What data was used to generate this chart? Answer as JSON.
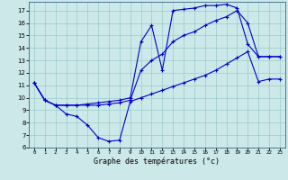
{
  "xlabel": "Graphe des températures (°c)",
  "bg_color": "#cce8e8",
  "grid_color": "#99cccc",
  "line_color": "#0000cc",
  "xlim": [
    -0.5,
    23.5
  ],
  "ylim": [
    6,
    17.7
  ],
  "xticks": [
    0,
    1,
    2,
    3,
    4,
    5,
    6,
    7,
    8,
    9,
    10,
    11,
    12,
    13,
    14,
    15,
    16,
    17,
    18,
    19,
    20,
    21,
    22,
    23
  ],
  "yticks": [
    6,
    7,
    8,
    9,
    10,
    11,
    12,
    13,
    14,
    15,
    16,
    17
  ],
  "line1": {
    "x": [
      0,
      1,
      2,
      3,
      4,
      5,
      6,
      7,
      8,
      9,
      10,
      11,
      12,
      13,
      14,
      15,
      16,
      17,
      18,
      19,
      20,
      21,
      22,
      23
    ],
    "y": [
      11.2,
      9.8,
      9.4,
      8.7,
      8.5,
      7.8,
      6.8,
      6.5,
      6.6,
      9.7,
      10.0,
      10.3,
      10.6,
      10.9,
      11.2,
      11.5,
      11.8,
      12.2,
      12.7,
      13.2,
      13.7,
      11.3,
      11.5,
      11.5
    ]
  },
  "line2": {
    "x": [
      0,
      1,
      2,
      3,
      4,
      5,
      6,
      7,
      8,
      9,
      10,
      11,
      12,
      13,
      14,
      15,
      16,
      17,
      18,
      19,
      20,
      21,
      22,
      23
    ],
    "y": [
      11.2,
      9.8,
      9.4,
      9.4,
      9.4,
      9.4,
      9.4,
      9.5,
      9.6,
      9.8,
      12.2,
      13.0,
      13.5,
      14.5,
      15.0,
      15.3,
      15.8,
      16.2,
      16.5,
      17.0,
      16.0,
      13.3,
      13.3,
      13.3
    ]
  },
  "line3": {
    "x": [
      0,
      1,
      2,
      3,
      4,
      5,
      6,
      7,
      8,
      9,
      10,
      11,
      12,
      13,
      14,
      15,
      16,
      17,
      18,
      19,
      20,
      21,
      22,
      23
    ],
    "y": [
      11.2,
      9.8,
      9.4,
      9.4,
      9.4,
      9.5,
      9.6,
      9.7,
      9.8,
      10.0,
      14.5,
      15.8,
      12.2,
      17.0,
      17.1,
      17.2,
      17.4,
      17.4,
      17.5,
      17.2,
      14.3,
      13.3,
      13.3,
      13.3
    ]
  }
}
